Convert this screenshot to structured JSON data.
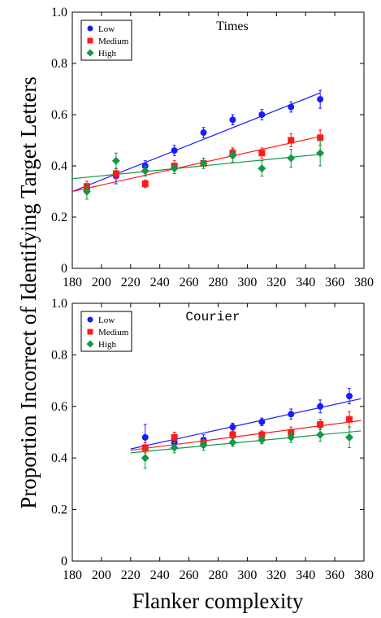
{
  "figure": {
    "ylabel": "Proportion Incorrect of Identifying Target Letters",
    "xlabel": "Flanker complexity"
  },
  "chart_data": [
    {
      "type": "scatter",
      "title": "Times",
      "title_font": "serif",
      "xlim": [
        180,
        380
      ],
      "ylim": [
        0,
        1.0
      ],
      "x_ticks": [
        "180",
        "200",
        "220",
        "240",
        "260",
        "280",
        "300",
        "320",
        "340",
        "360",
        "380"
      ],
      "y_ticks": [
        "0",
        "0.2",
        "0.4",
        "0.6",
        "0.8",
        "1.0"
      ],
      "legend_position": "top-left",
      "series": [
        {
          "name": "Low",
          "color": "#1a1aff",
          "marker": "circle",
          "x": [
            190,
            210,
            230,
            250,
            270,
            290,
            310,
            330,
            350
          ],
          "y": [
            0.31,
            0.36,
            0.4,
            0.46,
            0.53,
            0.58,
            0.6,
            0.63,
            0.66
          ],
          "err": [
            0.02,
            0.03,
            0.02,
            0.02,
            0.02,
            0.02,
            0.02,
            0.02,
            0.035
          ],
          "fit": [
            [
              180,
              0.3
            ],
            [
              350,
              0.685
            ]
          ]
        },
        {
          "name": "Medium",
          "color": "#ff1a1a",
          "marker": "square",
          "x": [
            190,
            210,
            230,
            250,
            270,
            290,
            310,
            330,
            350
          ],
          "y": [
            0.32,
            0.37,
            0.33,
            0.4,
            0.41,
            0.45,
            0.45,
            0.5,
            0.51
          ],
          "err": [
            0.02,
            0.02,
            0.015,
            0.02,
            0.02,
            0.02,
            0.02,
            0.025,
            0.03
          ],
          "fit": [
            [
              180,
              0.3
            ],
            [
              350,
              0.515
            ]
          ]
        },
        {
          "name": "High",
          "color": "#119944",
          "marker": "diamond",
          "x": [
            190,
            210,
            230,
            250,
            270,
            290,
            310,
            330,
            350
          ],
          "y": [
            0.3,
            0.42,
            0.38,
            0.39,
            0.41,
            0.44,
            0.39,
            0.43,
            0.45
          ],
          "err": [
            0.03,
            0.03,
            0.02,
            0.02,
            0.02,
            0.025,
            0.03,
            0.035,
            0.05
          ],
          "fit": [
            [
              180,
              0.35
            ],
            [
              350,
              0.445
            ]
          ]
        }
      ]
    },
    {
      "type": "scatter",
      "title": "Courier",
      "title_font": "mono",
      "xlim": [
        180,
        380
      ],
      "ylim": [
        0,
        1.0
      ],
      "x_ticks": [
        "180",
        "200",
        "220",
        "240",
        "260",
        "280",
        "300",
        "320",
        "340",
        "360",
        "380"
      ],
      "y_ticks": [
        "0",
        "0.2",
        "0.4",
        "0.6",
        "0.8",
        "1.0"
      ],
      "legend_position": "top-left",
      "series": [
        {
          "name": "Low",
          "color": "#1a1aff",
          "marker": "circle",
          "x": [
            230,
            250,
            270,
            290,
            310,
            330,
            350,
            370
          ],
          "y": [
            0.48,
            0.46,
            0.47,
            0.52,
            0.54,
            0.57,
            0.6,
            0.64
          ],
          "err": [
            0.05,
            0.02,
            0.02,
            0.015,
            0.015,
            0.02,
            0.025,
            0.03
          ],
          "fit": [
            [
              220,
              0.435
            ],
            [
              378,
              0.63
            ]
          ]
        },
        {
          "name": "Medium",
          "color": "#ff1a1a",
          "marker": "square",
          "x": [
            230,
            250,
            270,
            290,
            310,
            330,
            350,
            370
          ],
          "y": [
            0.44,
            0.48,
            0.46,
            0.49,
            0.49,
            0.5,
            0.53,
            0.55
          ],
          "err": [
            0.02,
            0.02,
            0.02,
            0.015,
            0.015,
            0.02,
            0.02,
            0.03
          ],
          "fit": [
            [
              220,
              0.43
            ],
            [
              378,
              0.545
            ]
          ]
        },
        {
          "name": "High",
          "color": "#119944",
          "marker": "diamond",
          "x": [
            230,
            250,
            270,
            290,
            310,
            330,
            350,
            370
          ],
          "y": [
            0.4,
            0.44,
            0.45,
            0.46,
            0.47,
            0.48,
            0.49,
            0.48
          ],
          "err": [
            0.04,
            0.02,
            0.02,
            0.015,
            0.015,
            0.02,
            0.025,
            0.04
          ],
          "fit": [
            [
              220,
              0.42
            ],
            [
              378,
              0.505
            ]
          ]
        }
      ]
    }
  ]
}
